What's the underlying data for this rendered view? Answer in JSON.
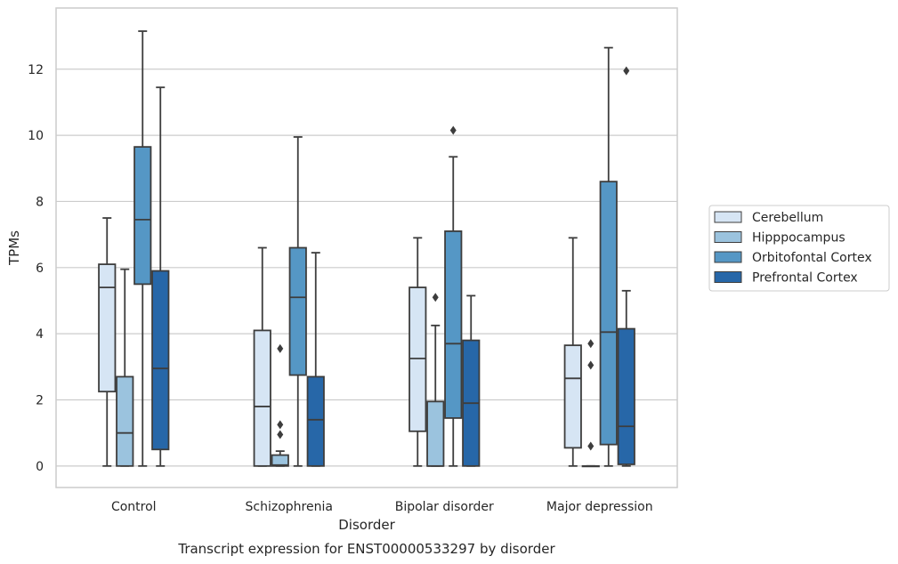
{
  "chart_data": {
    "type": "box",
    "title": "",
    "caption": "Transcript expression for ENST00000533297 by disorder",
    "xlabel": "Disorder",
    "ylabel": "TPMs",
    "ylim": [
      -0.65,
      13.85
    ],
    "yticks": [
      0,
      2,
      4,
      6,
      8,
      10,
      12
    ],
    "grid": "horizontal",
    "legend_position": "right",
    "categories": [
      "Control",
      "Schizophrenia",
      "Bipolar disorder",
      "Major depression"
    ],
    "series": [
      {
        "name": "Cerebellum",
        "color": "#d6e5f4",
        "boxes": [
          {
            "whisker_low": 0,
            "q1": 2.25,
            "median": 5.4,
            "q3": 6.1,
            "whisker_high": 7.5,
            "outliers": []
          },
          {
            "whisker_low": 0,
            "q1": 0,
            "median": 1.8,
            "q3": 4.1,
            "whisker_high": 6.6,
            "outliers": []
          },
          {
            "whisker_low": 0,
            "q1": 1.05,
            "median": 3.25,
            "q3": 5.4,
            "whisker_high": 6.9,
            "outliers": []
          },
          {
            "whisker_low": 0,
            "q1": 0.55,
            "median": 2.65,
            "q3": 3.65,
            "whisker_high": 6.9,
            "outliers": []
          }
        ]
      },
      {
        "name": "Hipppocampus",
        "color": "#9bc3de",
        "boxes": [
          {
            "whisker_low": 0,
            "q1": 0,
            "median": 1.0,
            "q3": 2.7,
            "whisker_high": 5.95,
            "outliers": []
          },
          {
            "whisker_low": 0,
            "q1": 0,
            "median": 0.03,
            "q3": 0.33,
            "whisker_high": 0.45,
            "outliers": [
              0.95,
              1.25,
              3.55
            ]
          },
          {
            "whisker_low": 0,
            "q1": 0,
            "median": 0,
            "q3": 1.95,
            "whisker_high": 4.25,
            "outliers": [
              5.1
            ]
          },
          {
            "whisker_low": 0,
            "q1": 0,
            "median": 0,
            "q3": 0,
            "whisker_high": 0,
            "outliers": [
              0.6,
              3.05,
              3.7
            ]
          }
        ]
      },
      {
        "name": "Orbitofontal Cortex",
        "color": "#5597c5",
        "boxes": [
          {
            "whisker_low": 0,
            "q1": 5.5,
            "median": 7.45,
            "q3": 9.65,
            "whisker_high": 13.15,
            "outliers": []
          },
          {
            "whisker_low": 0,
            "q1": 2.75,
            "median": 5.1,
            "q3": 6.6,
            "whisker_high": 9.95,
            "outliers": []
          },
          {
            "whisker_low": 0,
            "q1": 1.45,
            "median": 3.7,
            "q3": 7.1,
            "whisker_high": 9.35,
            "outliers": [
              10.15
            ]
          },
          {
            "whisker_low": 0,
            "q1": 0.65,
            "median": 4.05,
            "q3": 8.6,
            "whisker_high": 12.65,
            "outliers": []
          }
        ]
      },
      {
        "name": "Prefrontal Cortex",
        "color": "#2767a8",
        "boxes": [
          {
            "whisker_low": 0,
            "q1": 0.5,
            "median": 2.95,
            "q3": 5.9,
            "whisker_high": 11.45,
            "outliers": []
          },
          {
            "whisker_low": 0,
            "q1": 0,
            "median": 1.4,
            "q3": 2.7,
            "whisker_high": 6.45,
            "outliers": []
          },
          {
            "whisker_low": 0,
            "q1": 0,
            "median": 1.9,
            "q3": 3.8,
            "whisker_high": 5.15,
            "outliers": []
          },
          {
            "whisker_low": 0,
            "q1": 0.05,
            "median": 1.2,
            "q3": 4.15,
            "whisker_high": 5.3,
            "outliers": [
              11.95
            ]
          }
        ]
      }
    ]
  }
}
